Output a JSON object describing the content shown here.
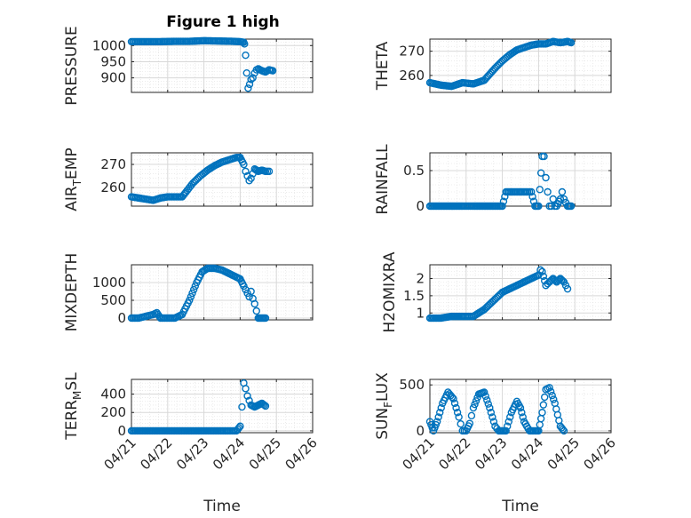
{
  "figure": {
    "title": "Figure 1 high"
  },
  "colors": {
    "marker": "#0072BD",
    "axis": "#262626",
    "grid": "#dfdfdf"
  },
  "x_tick_labels": [
    "04/21",
    "04/22",
    "04/23",
    "04/24",
    "04/25",
    "04/26"
  ],
  "x_label": "Time",
  "chart_data": [
    {
      "type": "scatter",
      "id": "pressure",
      "ylabel": "PRESSURE",
      "ylim": [
        855,
        1020
      ],
      "yticks": [
        900,
        950,
        1000
      ],
      "xlim": [
        0,
        5
      ],
      "grid": true,
      "x": [
        0.0,
        0.4,
        0.8,
        1.2,
        1.6,
        2.0,
        2.4,
        2.8,
        3.0,
        3.1,
        3.12,
        3.15,
        3.18,
        3.22,
        3.26,
        3.3,
        3.35,
        3.4,
        3.45,
        3.5,
        3.6,
        3.7,
        3.8,
        3.9
      ],
      "y": [
        1012,
        1012,
        1012,
        1013,
        1013,
        1015,
        1014,
        1013,
        1012,
        1010,
        1005,
        970,
        915,
        868,
        880,
        895,
        900,
        915,
        925,
        928,
        922,
        918,
        925,
        922
      ]
    },
    {
      "type": "scatter",
      "id": "theta",
      "ylabel": "THETA",
      "ylim": [
        253,
        275
      ],
      "yticks": [
        260,
        270
      ],
      "xlim": [
        0,
        5
      ],
      "grid": true,
      "x": [
        0.0,
        0.3,
        0.6,
        0.9,
        1.2,
        1.5,
        1.8,
        2.0,
        2.2,
        2.4,
        2.6,
        2.8,
        3.0,
        3.2,
        3.4,
        3.6,
        3.8,
        3.9
      ],
      "y": [
        257,
        256,
        255.5,
        257,
        256.5,
        258,
        263,
        266,
        268.5,
        270.5,
        271.5,
        272.5,
        273,
        273,
        274,
        273.5,
        274,
        273.5
      ]
    },
    {
      "type": "scatter",
      "id": "air_temp",
      "ylabel": "AIR_TEMP",
      "ylim": [
        252,
        275
      ],
      "yticks": [
        260,
        270
      ],
      "xlim": [
        0,
        5
      ],
      "grid": true,
      "x": [
        0.0,
        0.2,
        0.4,
        0.6,
        0.8,
        1.0,
        1.2,
        1.4,
        1.5,
        1.7,
        1.9,
        2.1,
        2.3,
        2.5,
        2.7,
        2.9,
        3.0,
        3.1,
        3.15,
        3.2,
        3.25,
        3.3,
        3.35,
        3.4,
        3.5,
        3.6,
        3.7,
        3.8
      ],
      "y": [
        256,
        255.5,
        255,
        254.5,
        255.5,
        256,
        256,
        256,
        258,
        262,
        265,
        267.5,
        269.5,
        271,
        272,
        273,
        273,
        270,
        267,
        265,
        263,
        264,
        266,
        268,
        267,
        267.5,
        267,
        267
      ]
    },
    {
      "type": "scatter",
      "id": "rainfall",
      "ylabel": "RAINFALL",
      "ylim": [
        0,
        0.75
      ],
      "yticks": [
        0,
        0.5
      ],
      "xlim": [
        0,
        5
      ],
      "grid": true,
      "x": [
        0.0,
        0.3,
        0.6,
        0.9,
        1.2,
        1.5,
        1.8,
        2.0,
        2.1,
        2.3,
        2.5,
        2.7,
        2.8,
        2.9,
        3.0,
        3.1,
        3.15,
        3.2,
        3.25,
        3.3,
        3.35,
        3.4,
        3.45,
        3.5,
        3.6,
        3.65,
        3.7,
        3.8,
        3.9
      ],
      "y": [
        0,
        0,
        0,
        0,
        0,
        0,
        0,
        0,
        0.2,
        0.2,
        0.2,
        0.2,
        0.2,
        0,
        0,
        0.7,
        0.7,
        0.4,
        0.2,
        0,
        0,
        0.1,
        0,
        0,
        0.1,
        0.2,
        0.1,
        0,
        0
      ]
    },
    {
      "type": "scatter",
      "id": "mixdepth",
      "ylabel": "MIXDEPTH",
      "ylim": [
        -50,
        1500
      ],
      "yticks": [
        0,
        500,
        1000
      ],
      "xlim": [
        0,
        5
      ],
      "grid": true,
      "x": [
        0.0,
        0.2,
        0.4,
        0.6,
        0.7,
        0.8,
        1.0,
        1.2,
        1.4,
        1.6,
        1.8,
        1.95,
        2.1,
        2.3,
        2.5,
        2.7,
        2.9,
        3.0,
        3.1,
        3.15,
        3.2,
        3.25,
        3.3,
        3.35,
        3.4,
        3.45,
        3.5,
        3.6,
        3.7
      ],
      "y": [
        0,
        0,
        50,
        100,
        150,
        0,
        0,
        0,
        100,
        500,
        1000,
        1300,
        1400,
        1400,
        1350,
        1250,
        1150,
        1100,
        900,
        800,
        700,
        600,
        750,
        550,
        400,
        200,
        0,
        0,
        0
      ]
    },
    {
      "type": "scatter",
      "id": "h2omixra",
      "ylabel": "H2OMIXRA",
      "ylim": [
        0.8,
        2.4
      ],
      "yticks": [
        1,
        1.5,
        2
      ],
      "xlim": [
        0,
        5
      ],
      "grid": true,
      "x": [
        0.0,
        0.3,
        0.6,
        0.9,
        1.2,
        1.5,
        1.8,
        2.0,
        2.2,
        2.4,
        2.6,
        2.8,
        3.0,
        3.05,
        3.1,
        3.2,
        3.3,
        3.4,
        3.5,
        3.6,
        3.7,
        3.8
      ],
      "y": [
        0.85,
        0.85,
        0.9,
        0.9,
        0.9,
        1.1,
        1.4,
        1.6,
        1.7,
        1.8,
        1.9,
        2.0,
        2.1,
        2.25,
        2.2,
        1.8,
        1.9,
        2.0,
        1.9,
        2.0,
        1.9,
        1.7
      ]
    },
    {
      "type": "scatter",
      "id": "terr_msl",
      "ylabel": "TERR_MSL",
      "ylim": [
        -20,
        560
      ],
      "yticks": [
        0,
        200,
        400
      ],
      "xlim": [
        0,
        5
      ],
      "grid": true,
      "x": [
        0.0,
        0.5,
        1.0,
        1.5,
        2.0,
        2.5,
        2.9,
        3.0,
        3.05,
        3.1,
        3.15,
        3.2,
        3.3,
        3.4,
        3.5,
        3.6,
        3.7
      ],
      "y": [
        0,
        0,
        0,
        0,
        0,
        0,
        0,
        50,
        260,
        520,
        460,
        380,
        280,
        260,
        280,
        300,
        270
      ]
    },
    {
      "type": "scatter",
      "id": "sun_flux",
      "ylabel": "SUN_FLUX",
      "ylim": [
        -20,
        560
      ],
      "yticks": [
        0,
        500
      ],
      "xlim": [
        0,
        5
      ],
      "grid": true,
      "x": [
        0.0,
        0.1,
        0.2,
        0.35,
        0.5,
        0.65,
        0.8,
        0.9,
        1.0,
        1.1,
        1.2,
        1.35,
        1.5,
        1.65,
        1.8,
        1.9,
        2.0,
        2.1,
        2.25,
        2.4,
        2.5,
        2.6,
        2.75,
        2.9,
        3.0,
        3.1,
        3.2,
        3.3,
        3.45,
        3.6,
        3.7
      ],
      "y": [
        100,
        0,
        100,
        300,
        420,
        350,
        150,
        0,
        0,
        80,
        250,
        400,
        420,
        250,
        50,
        0,
        0,
        0,
        200,
        320,
        250,
        100,
        0,
        0,
        0,
        200,
        450,
        470,
        300,
        50,
        0
      ]
    }
  ]
}
